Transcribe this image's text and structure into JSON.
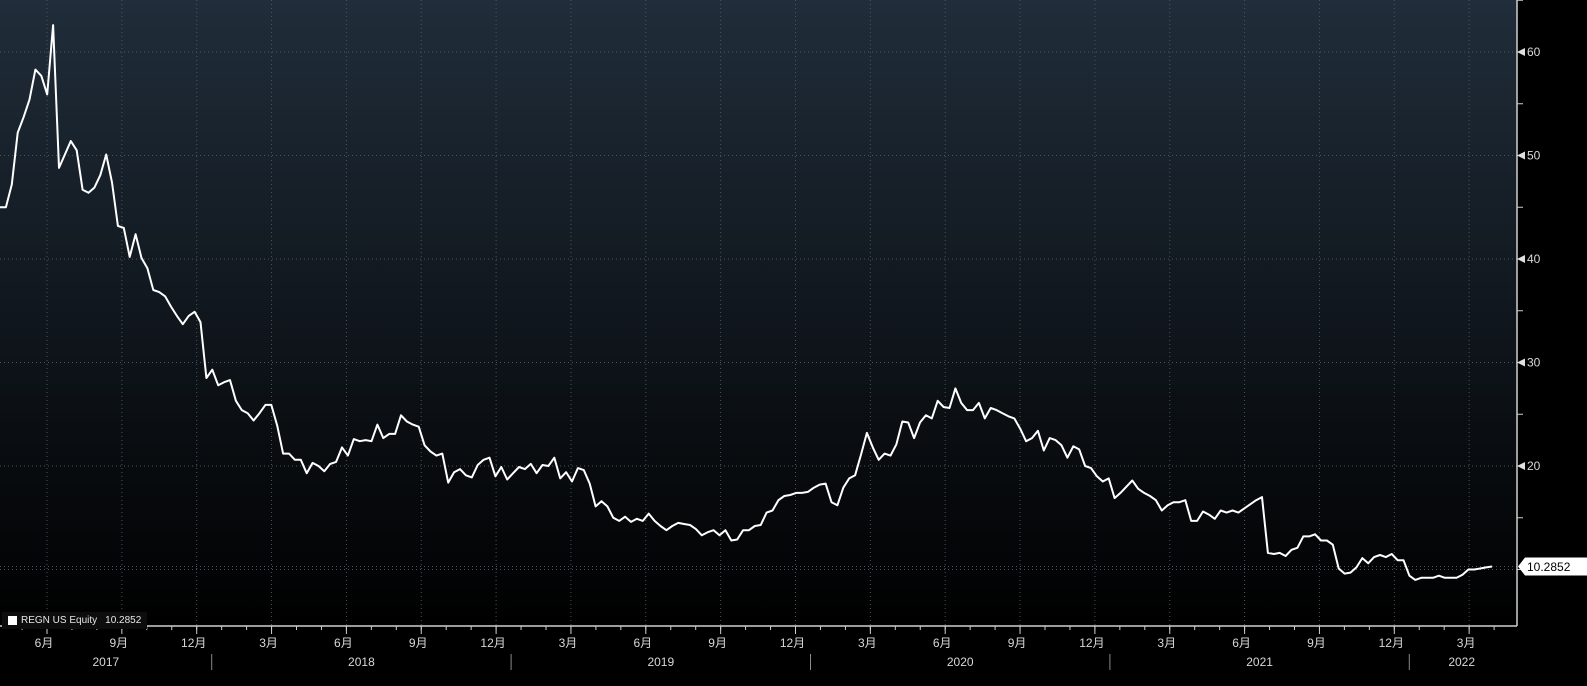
{
  "chart_data": {
    "type": "line",
    "title": "",
    "series": [
      {
        "name": "REGN US Equity",
        "last": "10.2852",
        "color": "#ffffff",
        "frequency": "weekly",
        "start": "2017-04",
        "end": "2022-04",
        "values": [
          45.0,
          45.0,
          47.2,
          52.2,
          53.7,
          55.4,
          58.3,
          57.7,
          55.9,
          62.6,
          48.8,
          50.1,
          51.4,
          50.5,
          46.7,
          46.4,
          46.9,
          48.1,
          50.1,
          47.4,
          43.2,
          43.0,
          40.2,
          42.4,
          40.1,
          39.1,
          37.0,
          36.8,
          36.4,
          35.4,
          34.5,
          33.7,
          34.5,
          34.9,
          33.9,
          28.5,
          29.3,
          27.8,
          28.1,
          28.3,
          26.3,
          25.4,
          25.1,
          24.4,
          25.1,
          25.9,
          25.9,
          23.9,
          21.2,
          21.2,
          20.6,
          20.6,
          19.3,
          20.3,
          20.0,
          19.5,
          20.2,
          20.4,
          21.8,
          21.0,
          22.6,
          22.4,
          22.5,
          22.4,
          24.0,
          22.7,
          23.1,
          23.1,
          24.9,
          24.3,
          24.0,
          23.8,
          22.0,
          21.4,
          21.0,
          21.2,
          18.4,
          19.4,
          19.7,
          19.1,
          18.9,
          20.1,
          20.6,
          20.8,
          19.0,
          19.9,
          18.7,
          19.3,
          19.9,
          19.7,
          20.2,
          19.3,
          20.1,
          20.0,
          20.8,
          18.8,
          19.4,
          18.5,
          19.8,
          19.6,
          18.3,
          16.1,
          16.6,
          16.1,
          15.0,
          14.7,
          15.1,
          14.6,
          14.9,
          14.7,
          15.4,
          14.7,
          14.2,
          13.8,
          14.2,
          14.5,
          14.4,
          14.3,
          13.9,
          13.3,
          13.6,
          13.8,
          13.3,
          13.8,
          12.8,
          12.9,
          13.8,
          13.8,
          14.2,
          14.3,
          15.5,
          15.7,
          16.7,
          17.1,
          17.2,
          17.4,
          17.4,
          17.5,
          17.9,
          18.2,
          18.3,
          16.5,
          16.2,
          17.9,
          18.8,
          19.1,
          21.1,
          23.2,
          21.8,
          20.6,
          21.2,
          21.0,
          22.1,
          24.3,
          24.2,
          22.7,
          24.2,
          24.9,
          24.6,
          26.3,
          25.7,
          25.6,
          27.5,
          26.1,
          25.4,
          25.4,
          26.1,
          24.6,
          25.6,
          25.4,
          25.1,
          24.8,
          24.6,
          23.6,
          22.4,
          22.7,
          23.4,
          21.5,
          22.7,
          22.5,
          22.0,
          20.8,
          21.9,
          21.6,
          20.0,
          19.8,
          19.0,
          18.5,
          18.8,
          16.9,
          17.4,
          18.0,
          18.6,
          17.8,
          17.4,
          17.1,
          16.7,
          15.7,
          16.2,
          16.5,
          16.5,
          16.7,
          14.7,
          14.7,
          15.6,
          15.3,
          14.9,
          15.7,
          15.5,
          15.7,
          15.5,
          15.9,
          16.3,
          16.7,
          17.0,
          11.6,
          11.5,
          11.6,
          11.3,
          11.9,
          12.1,
          13.2,
          13.2,
          13.4,
          12.8,
          12.8,
          12.4,
          10.1,
          9.6,
          9.7,
          10.2,
          11.1,
          10.6,
          11.2,
          11.4,
          11.2,
          11.5,
          10.9,
          10.9,
          9.4,
          9.0,
          9.2,
          9.2,
          9.2,
          9.4,
          9.2,
          9.2,
          9.2,
          9.5,
          10.0,
          10.0,
          10.1,
          10.2,
          10.2852
        ]
      }
    ],
    "y_ticks": [
      "20",
      "30",
      "40",
      "50",
      "60"
    ],
    "y_tick_values": [
      20,
      30,
      40,
      50,
      60
    ],
    "ylim": [
      5,
      65
    ],
    "x_ticks": [
      "6月",
      "9月",
      "12月",
      "3月",
      "6月",
      "9月",
      "12月",
      "3月",
      "6月",
      "9月",
      "12月",
      "3月",
      "6月",
      "9月",
      "12月",
      "3月",
      "6月",
      "9月",
      "12月",
      "3月"
    ],
    "years": [
      {
        "label": "2017",
        "from": -2,
        "to": 2
      },
      {
        "label": "2018",
        "from": 2,
        "to": 6
      },
      {
        "label": "2019",
        "from": 6,
        "to": 10
      },
      {
        "label": "2020",
        "from": 10,
        "to": 14
      },
      {
        "label": "2021",
        "from": 14,
        "to": 18
      },
      {
        "label": "2022",
        "from": 18,
        "to": 19.4
      }
    ],
    "grid": true,
    "legend": "bottom-left"
  },
  "legend": {
    "label": "REGN US Equity",
    "value": "10.2852"
  }
}
